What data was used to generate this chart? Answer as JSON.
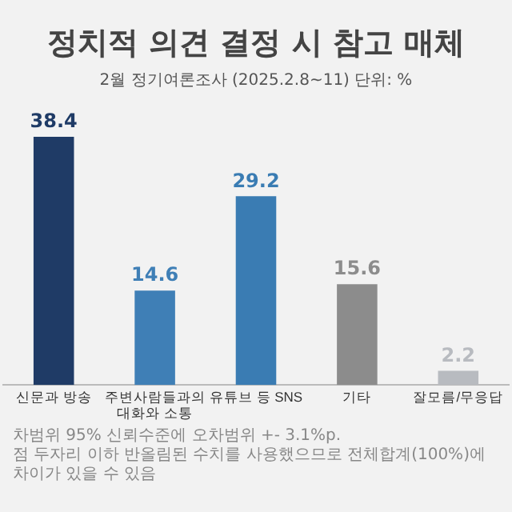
{
  "chart_data": {
    "type": "bar",
    "title": "정치적 의견 결정 시 참고 매체",
    "subtitle": "2월 정기여론조사 (2025.2.8~11) 단위: %",
    "categories": [
      "신문과 방송",
      "주변사람들과의\n대화와 소통",
      "유튜브 등 SNS",
      "기타",
      "잘모름/무응답"
    ],
    "values": [
      38.4,
      14.6,
      29.2,
      15.6,
      2.2
    ],
    "colors": [
      "#1f3b66",
      "#3f7fb6",
      "#3a7cb3",
      "#8c8c8c",
      "#b8bbc0"
    ],
    "data_labels": true,
    "grid": false,
    "legend": false,
    "annotations": [
      "차범위 95% 신뢰수준에 오차범위 +- 3.1%p.",
      "점 두자리 이하 반올림된 수치를 사용했으므로 전체합계(100%)에 차이가 있을 수 있음"
    ]
  }
}
